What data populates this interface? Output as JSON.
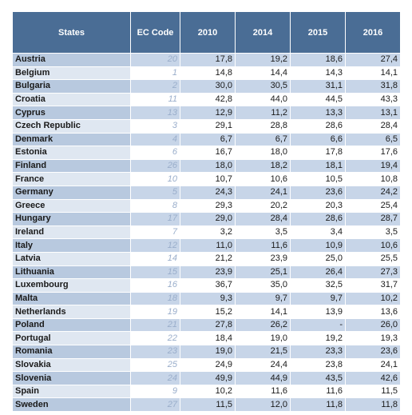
{
  "table": {
    "headers": [
      "States",
      "EC Code",
      "2010",
      "2014",
      "2015",
      "2016"
    ],
    "rows": [
      {
        "state": "Austria",
        "code": "20",
        "v2010": "17,8",
        "v2014": "19,2",
        "v2015": "18,6",
        "v2016": "27,4"
      },
      {
        "state": "Belgium",
        "code": "1",
        "v2010": "14,8",
        "v2014": "14,4",
        "v2015": "14,3",
        "v2016": "14,1"
      },
      {
        "state": "Bulgaria",
        "code": "2",
        "v2010": "30,0",
        "v2014": "30,5",
        "v2015": "31,1",
        "v2016": "31,8"
      },
      {
        "state": "Croatia",
        "code": "11",
        "v2010": "42,8",
        "v2014": "44,0",
        "v2015": "44,5",
        "v2016": "43,3"
      },
      {
        "state": "Cyprus",
        "code": "13",
        "v2010": "12,9",
        "v2014": "11,2",
        "v2015": "13,3",
        "v2016": "13,1"
      },
      {
        "state": "Czech Republic",
        "code": "3",
        "v2010": "29,1",
        "v2014": "28,8",
        "v2015": "28,6",
        "v2016": "28,4"
      },
      {
        "state": "Denmark",
        "code": "4",
        "v2010": "6,7",
        "v2014": "6,7",
        "v2015": "6,6",
        "v2016": "6,5"
      },
      {
        "state": "Estonia",
        "code": "6",
        "v2010": "16,7",
        "v2014": "18,0",
        "v2015": "17,8",
        "v2016": "17,6"
      },
      {
        "state": "Finland",
        "code": "26",
        "v2010": "18,0",
        "v2014": "18,2",
        "v2015": "18,1",
        "v2016": "19,4"
      },
      {
        "state": "France",
        "code": "10",
        "v2010": "10,7",
        "v2014": "10,6",
        "v2015": "10,5",
        "v2016": "10,8"
      },
      {
        "state": "Germany",
        "code": "5",
        "v2010": "24,3",
        "v2014": "24,1",
        "v2015": "23,6",
        "v2016": "24,2"
      },
      {
        "state": "Greece",
        "code": "8",
        "v2010": "29,3",
        "v2014": "20,2",
        "v2015": "20,3",
        "v2016": "25,4"
      },
      {
        "state": "Hungary",
        "code": "17",
        "v2010": "29,0",
        "v2014": "28,4",
        "v2015": "28,6",
        "v2016": "28,7"
      },
      {
        "state": "Ireland",
        "code": "7",
        "v2010": "3,2",
        "v2014": "3,5",
        "v2015": "3,4",
        "v2016": "3,5"
      },
      {
        "state": "Italy",
        "code": "12",
        "v2010": "11,0",
        "v2014": "11,6",
        "v2015": "10,9",
        "v2016": "10,6"
      },
      {
        "state": "Latvia",
        "code": "14",
        "v2010": "21,2",
        "v2014": "23,9",
        "v2015": "25,0",
        "v2016": "25,5"
      },
      {
        "state": "Lithuania",
        "code": "15",
        "v2010": "23,9",
        "v2014": "25,1",
        "v2015": "26,4",
        "v2016": "27,3"
      },
      {
        "state": "Luxembourg",
        "code": "16",
        "v2010": "36,7",
        "v2014": "35,0",
        "v2015": "32,5",
        "v2016": "31,7"
      },
      {
        "state": "Malta",
        "code": "18",
        "v2010": "9,3",
        "v2014": "9,7",
        "v2015": "9,7",
        "v2016": "10,2"
      },
      {
        "state": "Netherlands",
        "code": "19",
        "v2010": "15,2",
        "v2014": "14,1",
        "v2015": "13,9",
        "v2016": "13,6"
      },
      {
        "state": "Poland",
        "code": "21",
        "v2010": "27,8",
        "v2014": "26,2",
        "v2015": "-",
        "v2016": "26,0"
      },
      {
        "state": "Portugal",
        "code": "22",
        "v2010": "18,4",
        "v2014": "19,0",
        "v2015": "19,2",
        "v2016": "19,3"
      },
      {
        "state": "Romania",
        "code": "23",
        "v2010": "19,0",
        "v2014": "21,5",
        "v2015": "23,3",
        "v2016": "23,6"
      },
      {
        "state": "Slovakia",
        "code": "25",
        "v2010": "24,9",
        "v2014": "24,4",
        "v2015": "23,8",
        "v2016": "24,1"
      },
      {
        "state": "Slovenia",
        "code": "24",
        "v2010": "49,9",
        "v2014": "44,9",
        "v2015": "43,5",
        "v2016": "42,6"
      },
      {
        "state": "Spain",
        "code": "9",
        "v2010": "10,2",
        "v2014": "11,6",
        "v2015": "11,6",
        "v2016": "11,5"
      },
      {
        "state": "Sweden",
        "code": "27",
        "v2010": "11,5",
        "v2014": "12,0",
        "v2015": "11,8",
        "v2016": "11,8"
      }
    ]
  }
}
